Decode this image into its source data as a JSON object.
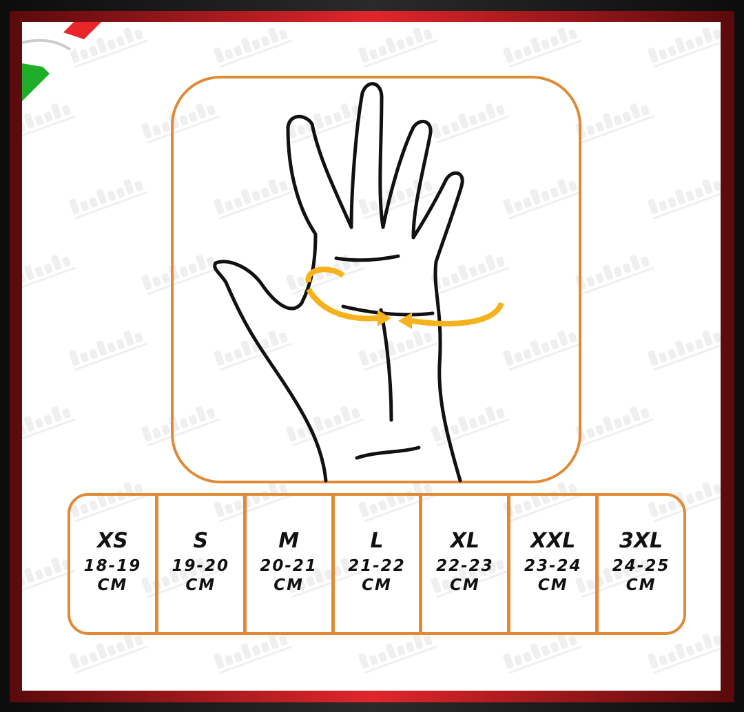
{
  "watermark": "delprete",
  "colors": {
    "border": "#e08a36",
    "frame_red": "#e0262b",
    "arrow": "#f5b21c"
  },
  "sizes": [
    {
      "label": "XS",
      "range": "18-19",
      "unit": "CM"
    },
    {
      "label": "S",
      "range": "19-20",
      "unit": "CM"
    },
    {
      "label": "M",
      "range": "20-21",
      "unit": "CM"
    },
    {
      "label": "L",
      "range": "21-22",
      "unit": "CM"
    },
    {
      "label": "XL",
      "range": "22-23",
      "unit": "CM"
    },
    {
      "label": "XXL",
      "range": "23-24",
      "unit": "CM"
    },
    {
      "label": "3XL",
      "range": "24-25",
      "unit": "CM"
    }
  ]
}
